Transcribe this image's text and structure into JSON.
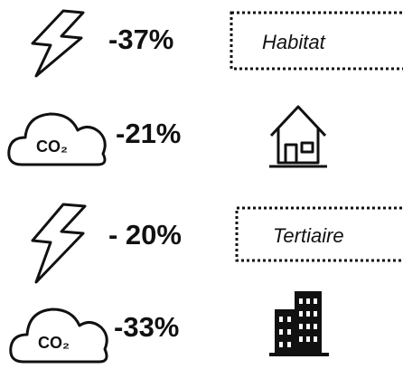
{
  "sections": [
    {
      "name": "Habitat",
      "electricity": "-37%",
      "co2_label": "CO₂",
      "co2": "-21%"
    },
    {
      "name": "Tertiaire",
      "electricity": "- 20%",
      "co2_label": "CO₂",
      "co2": "-33%"
    }
  ]
}
